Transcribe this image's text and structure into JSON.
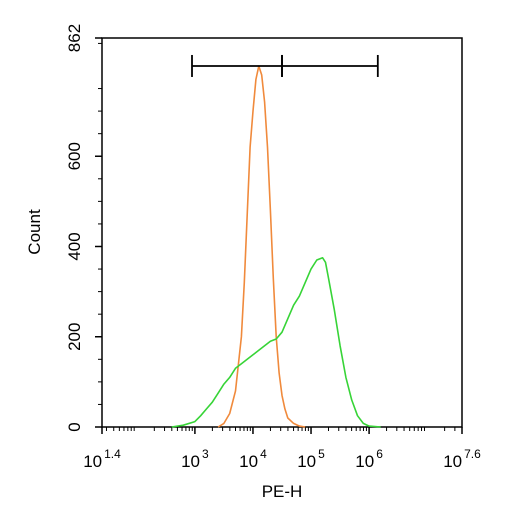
{
  "chart_data": {
    "type": "line",
    "xlabel": "PE-H",
    "ylabel": "Count",
    "x_scale": "log10",
    "xlim": [
      1.4,
      7.6
    ],
    "ylim": [
      0,
      862
    ],
    "grid": false,
    "x_ticks": [
      {
        "base": "10",
        "exp": "1.4",
        "value": 1.4
      },
      {
        "base": "10",
        "exp": "3",
        "value": 3
      },
      {
        "base": "10",
        "exp": "4",
        "value": 4
      },
      {
        "base": "10",
        "exp": "5",
        "value": 5
      },
      {
        "base": "10",
        "exp": "6",
        "value": 6
      },
      {
        "base": "10",
        "exp": "7.6",
        "value": 7.6
      }
    ],
    "y_ticks": [
      {
        "label": "0",
        "value": 0
      },
      {
        "label": "200",
        "value": 200
      },
      {
        "label": "400",
        "value": 400
      },
      {
        "label": "600",
        "value": 600
      },
      {
        "label": "862",
        "value": 862
      }
    ],
    "gate_markers": [
      {
        "x_start": 2.95,
        "x_end": 4.5,
        "y": 800
      },
      {
        "x_start": 4.5,
        "x_end": 6.15,
        "y": 800
      }
    ],
    "series": [
      {
        "color": "#F08A3C",
        "x": [
          3.4,
          3.5,
          3.6,
          3.7,
          3.8,
          3.85,
          3.9,
          3.95,
          4.0,
          4.05,
          4.1,
          4.15,
          4.2,
          4.25,
          4.3,
          4.35,
          4.4,
          4.45,
          4.5,
          4.55,
          4.6,
          4.7,
          4.8,
          4.9
        ],
        "y": [
          0,
          8,
          30,
          80,
          200,
          320,
          470,
          620,
          700,
          770,
          800,
          780,
          720,
          620,
          480,
          330,
          200,
          120,
          70,
          40,
          20,
          8,
          2,
          0
        ]
      },
      {
        "color": "#37D437",
        "x": [
          2.6,
          2.8,
          3.0,
          3.1,
          3.2,
          3.3,
          3.4,
          3.5,
          3.6,
          3.7,
          3.8,
          3.9,
          4.0,
          4.1,
          4.2,
          4.3,
          4.4,
          4.5,
          4.6,
          4.7,
          4.8,
          4.9,
          5.0,
          5.1,
          5.2,
          5.25,
          5.3,
          5.4,
          5.5,
          5.6,
          5.7,
          5.8,
          5.9,
          6.0,
          6.2
        ],
        "y": [
          0,
          4,
          12,
          25,
          40,
          55,
          75,
          95,
          110,
          130,
          140,
          150,
          160,
          170,
          180,
          190,
          195,
          210,
          240,
          270,
          290,
          320,
          350,
          370,
          375,
          365,
          330,
          260,
          180,
          110,
          60,
          25,
          8,
          2,
          0
        ]
      }
    ]
  }
}
